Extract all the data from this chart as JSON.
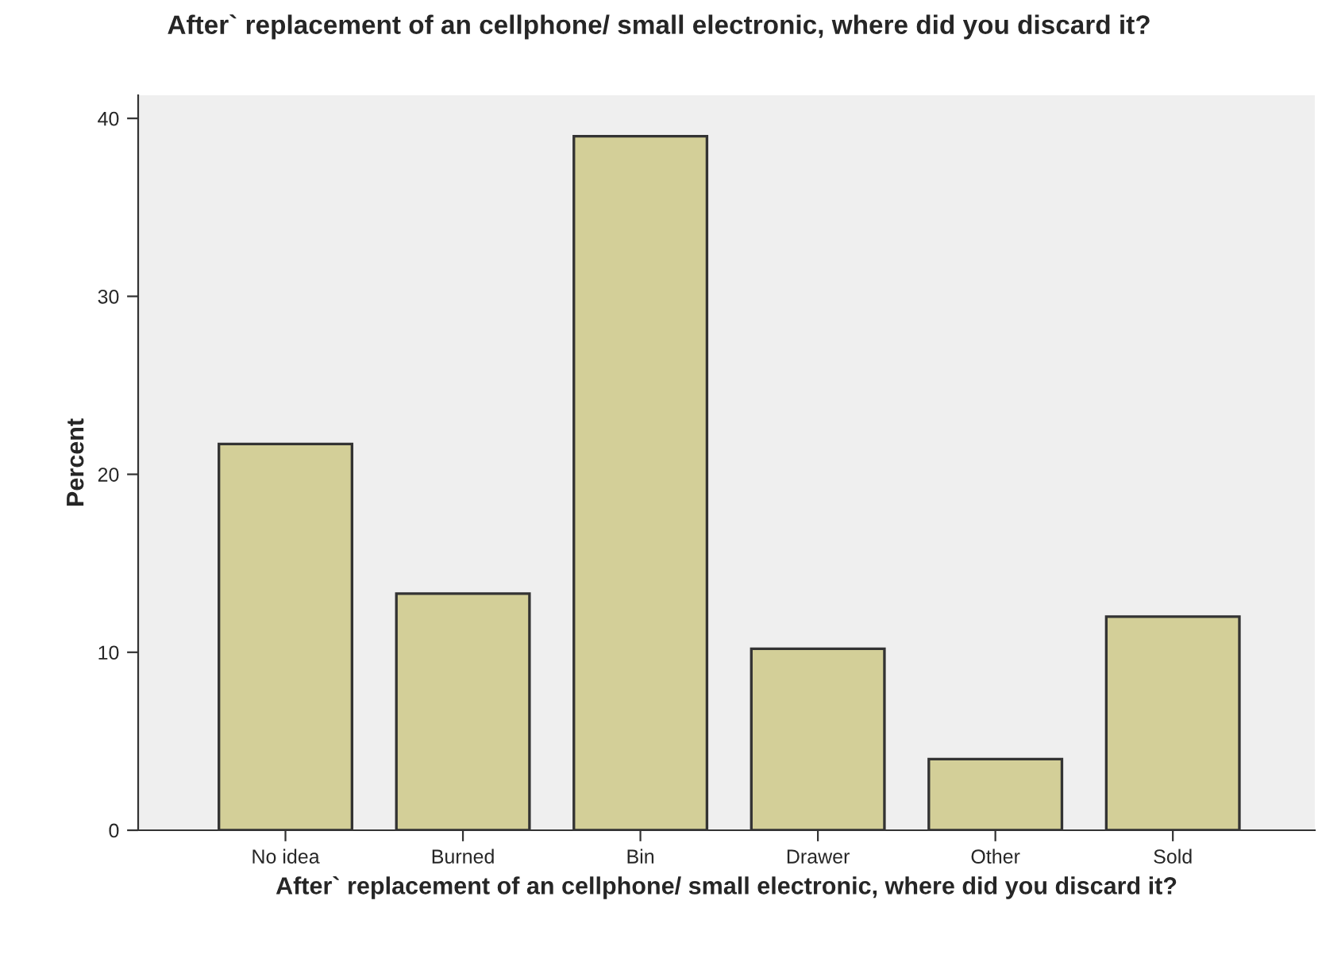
{
  "chart_data": {
    "type": "bar",
    "title": "After` replacement of an cellphone/ small electronic, where did you discard it?",
    "xlabel": "After` replacement of an cellphone/ small electronic, where did you discard it?",
    "ylabel": "Percent",
    "categories": [
      "No idea",
      "Burned",
      "Bin",
      "Drawer",
      "Other",
      "Sold"
    ],
    "values": [
      21.7,
      13.3,
      39.0,
      10.2,
      4.0,
      12.0
    ],
    "color": "#d3cf98",
    "ylim": [
      0,
      41.3
    ],
    "yticks": [
      0,
      10,
      20,
      30,
      40
    ],
    "grid": false
  }
}
